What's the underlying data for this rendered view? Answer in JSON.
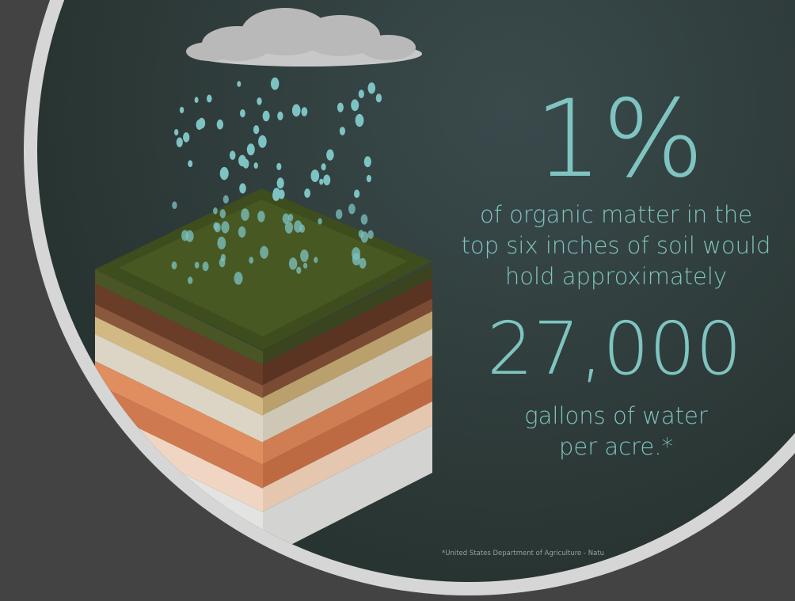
{
  "headline": "1%",
  "description": [
    "of organic matter in the",
    "top six inches of soil would",
    "hold approximately"
  ],
  "amount": "27,000",
  "unit_lines": [
    "gallons of water",
    "per acre.*"
  ],
  "footnote": "*United States Department of Agriculture - Natu"
}
